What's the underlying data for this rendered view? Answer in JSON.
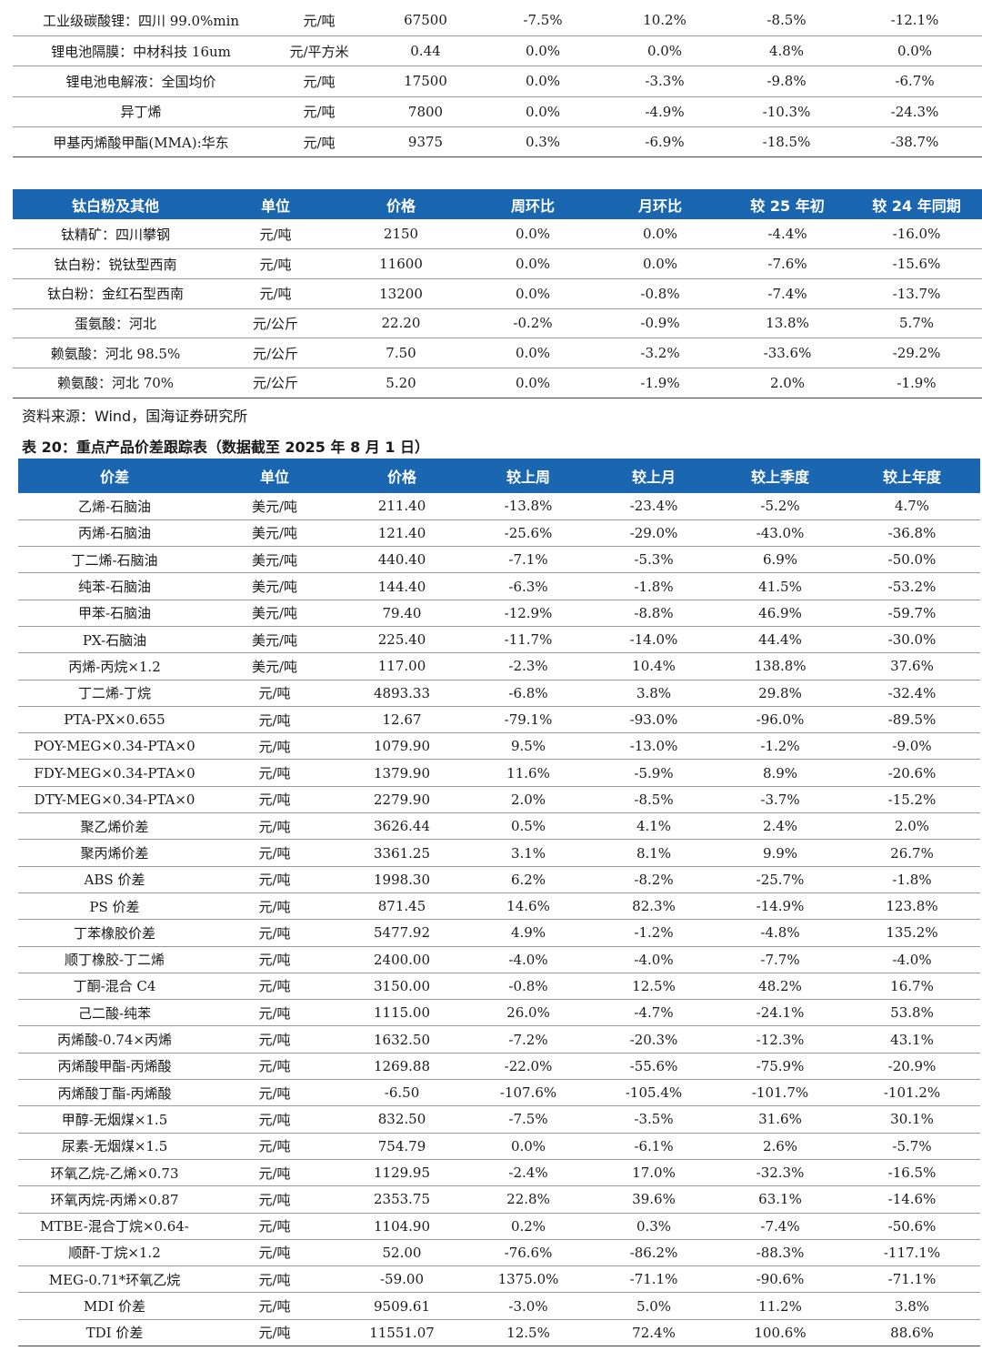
{
  "table_top": {
    "rows": [
      [
        "工业级碳酸锂：四川 99.0%min",
        "元/吨",
        "67500",
        "-7.5%",
        "10.2%",
        "-8.5%",
        "-12.1%"
      ],
      [
        "锂电池隔膜：中材科技 16um",
        "元/平方米",
        "0.44",
        "0.0%",
        "0.0%",
        "4.8%",
        "0.0%"
      ],
      [
        "锂电池电解液：全国均价",
        "元/吨",
        "17500",
        "0.0%",
        "-3.3%",
        "-9.8%",
        "-6.7%"
      ],
      [
        "异丁烯",
        "元/吨",
        "7800",
        "0.0%",
        "-4.9%",
        "-10.3%",
        "-24.3%"
      ],
      [
        "甲基丙烯酸甲酯(MMA):华东",
        "元/吨",
        "9375",
        "0.3%",
        "-6.9%",
        "-18.5%",
        "-38.7%"
      ]
    ]
  },
  "table_titanium": {
    "headers": [
      "钛白粉及其他",
      "单位",
      "价格",
      "周环比",
      "月环比",
      "较 25 年初",
      "较 24 年同期"
    ],
    "rows": [
      [
        "钛精矿：四川攀钢",
        "元/吨",
        "2150",
        "0.0%",
        "0.0%",
        "-4.4%",
        "-16.0%"
      ],
      [
        "钛白粉：锐钛型西南",
        "元/吨",
        "11600",
        "0.0%",
        "0.0%",
        "-7.6%",
        "-15.6%"
      ],
      [
        "钛白粉：金红石型西南",
        "元/吨",
        "13200",
        "0.0%",
        "-0.8%",
        "-7.4%",
        "-13.7%"
      ],
      [
        "蛋氨酸：河北",
        "元/公斤",
        "22.20",
        "-0.2%",
        "-0.9%",
        "13.8%",
        "5.7%"
      ],
      [
        "赖氨酸：河北 98.5%",
        "元/公斤",
        "7.50",
        "0.0%",
        "-3.2%",
        "-33.6%",
        "-29.2%"
      ],
      [
        "赖氨酸：河北 70%",
        "元/公斤",
        "5.20",
        "0.0%",
        "-1.9%",
        "2.0%",
        "-1.9%"
      ]
    ]
  },
  "source_note": "资料来源：Wind，国海证券研究所",
  "caption": "表 20：重点产品价差跟踪表（数据截至 2025 年 8 月 1 日）",
  "table_spread": {
    "headers": [
      "价差",
      "单位",
      "价格",
      "较上周",
      "较上月",
      "较上季度",
      "较上年度"
    ],
    "rows": [
      [
        "乙烯-石脑油",
        "美元/吨",
        "211.40",
        "-13.8%",
        "-23.4%",
        "-5.2%",
        "4.7%"
      ],
      [
        "丙烯-石脑油",
        "美元/吨",
        "121.40",
        "-25.6%",
        "-29.0%",
        "-43.0%",
        "-36.8%"
      ],
      [
        "丁二烯-石脑油",
        "美元/吨",
        "440.40",
        "-7.1%",
        "-5.3%",
        "6.9%",
        "-50.0%"
      ],
      [
        "纯苯-石脑油",
        "美元/吨",
        "144.40",
        "-6.3%",
        "-1.8%",
        "41.5%",
        "-53.2%"
      ],
      [
        "甲苯-石脑油",
        "美元/吨",
        "79.40",
        "-12.9%",
        "-8.8%",
        "46.9%",
        "-59.7%"
      ],
      [
        "PX-石脑油",
        "美元/吨",
        "225.40",
        "-11.7%",
        "-14.0%",
        "44.4%",
        "-30.0%"
      ],
      [
        "丙烯-丙烷×1.2",
        "美元/吨",
        "117.00",
        "-2.3%",
        "10.4%",
        "138.8%",
        "37.6%"
      ],
      [
        "丁二烯-丁烷",
        "元/吨",
        "4893.33",
        "-6.8%",
        "3.8%",
        "29.8%",
        "-32.4%"
      ],
      [
        "PTA-PX×0.655",
        "元/吨",
        "12.67",
        "-79.1%",
        "-93.0%",
        "-96.0%",
        "-89.5%"
      ],
      [
        "POY-MEG×0.34-PTA×0",
        "元/吨",
        "1079.90",
        "9.5%",
        "-13.0%",
        "-1.2%",
        "-9.0%"
      ],
      [
        "FDY-MEG×0.34-PTA×0",
        "元/吨",
        "1379.90",
        "11.6%",
        "-5.9%",
        "8.9%",
        "-20.6%"
      ],
      [
        "DTY-MEG×0.34-PTA×0",
        "元/吨",
        "2279.90",
        "2.0%",
        "-8.5%",
        "-3.7%",
        "-15.2%"
      ],
      [
        "聚乙烯价差",
        "元/吨",
        "3626.44",
        "0.5%",
        "4.1%",
        "2.4%",
        "2.0%"
      ],
      [
        "聚丙烯价差",
        "元/吨",
        "3361.25",
        "3.1%",
        "8.1%",
        "9.9%",
        "26.7%"
      ],
      [
        "ABS 价差",
        "元/吨",
        "1998.30",
        "6.2%",
        "-8.2%",
        "-25.7%",
        "-1.8%"
      ],
      [
        "PS 价差",
        "元/吨",
        "871.45",
        "14.6%",
        "82.3%",
        "-14.9%",
        "123.8%"
      ],
      [
        "丁苯橡胶价差",
        "元/吨",
        "5477.92",
        "4.9%",
        "-1.2%",
        "-4.8%",
        "135.2%"
      ],
      [
        "顺丁橡胶-丁二烯",
        "元/吨",
        "2400.00",
        "-4.0%",
        "-4.0%",
        "-7.7%",
        "-4.0%"
      ],
      [
        "丁酮-混合 C4",
        "元/吨",
        "3150.00",
        "-0.8%",
        "12.5%",
        "48.2%",
        "16.7%"
      ],
      [
        "己二酸-纯苯",
        "元/吨",
        "1115.00",
        "26.0%",
        "-4.7%",
        "-24.1%",
        "53.8%"
      ],
      [
        "丙烯酸-0.74×丙烯",
        "元/吨",
        "1632.50",
        "-7.2%",
        "-20.3%",
        "-12.3%",
        "43.1%"
      ],
      [
        "丙烯酸甲酯-丙烯酸",
        "元/吨",
        "1269.88",
        "-22.0%",
        "-55.6%",
        "-75.9%",
        "-20.9%"
      ],
      [
        "丙烯酸丁酯-丙烯酸",
        "元/吨",
        "-6.50",
        "-107.6%",
        "-105.4%",
        "-101.7%",
        "-101.2%"
      ],
      [
        "甲醇-无烟煤×1.5",
        "元/吨",
        "832.50",
        "-7.5%",
        "-3.5%",
        "31.6%",
        "30.1%"
      ],
      [
        "尿素-无烟煤×1.5",
        "元/吨",
        "754.79",
        "0.0%",
        "-6.1%",
        "2.6%",
        "-5.7%"
      ],
      [
        "环氧乙烷-乙烯×0.73",
        "元/吨",
        "1129.95",
        "-2.4%",
        "17.0%",
        "-32.3%",
        "-16.5%"
      ],
      [
        "环氧丙烷-丙烯×0.87",
        "元/吨",
        "2353.75",
        "22.8%",
        "39.6%",
        "63.1%",
        "-14.6%"
      ],
      [
        "MTBE-混合丁烷×0.64-",
        "元/吨",
        "1104.90",
        "0.2%",
        "0.3%",
        "-7.4%",
        "-50.6%"
      ],
      [
        "顺酐-丁烷×1.2",
        "元/吨",
        "52.00",
        "-76.6%",
        "-86.2%",
        "-88.3%",
        "-117.1%"
      ],
      [
        "MEG-0.71*环氧乙烷",
        "元/吨",
        "-59.00",
        "1375.0%",
        "-71.1%",
        "-90.6%",
        "-71.1%"
      ],
      [
        "MDI 价差",
        "元/吨",
        "9509.61",
        "-3.0%",
        "5.0%",
        "11.2%",
        "3.8%"
      ],
      [
        "TDI 价差",
        "元/吨",
        "11551.07",
        "12.5%",
        "72.4%",
        "100.6%",
        "88.6%"
      ]
    ]
  }
}
